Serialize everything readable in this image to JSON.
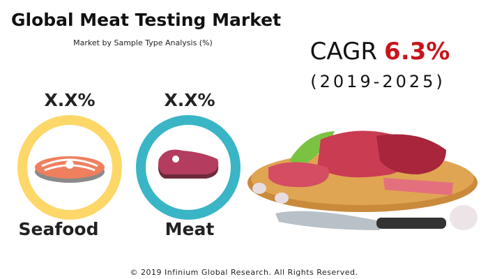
{
  "header": {
    "title": "Global Meat Testing Market",
    "subtitle": "Market by Sample Type Analysis (%)"
  },
  "cagr": {
    "label": "CAGR",
    "value": "6.3%",
    "period": "(2019-2025)"
  },
  "segments": [
    {
      "share": "X.X%",
      "name": "Seafood"
    },
    {
      "share": "X.X%",
      "name": "Meat"
    }
  ],
  "footer": "© 2019 Infinium Global Research. All Rights Reserved."
}
